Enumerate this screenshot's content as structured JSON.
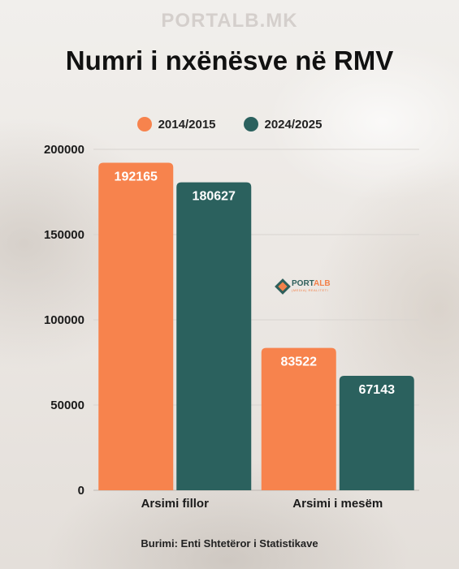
{
  "watermark": "PORTALB.MK",
  "logo": {
    "name_a": "PORT",
    "name_b": "ALB",
    "tagline": "(MEDIA) REALITETI"
  },
  "source": "Burimi: Enti Shtetëror i Statistikave",
  "colors": {
    "series_1": "#f7834d",
    "series_2": "#2b615e",
    "grid": "#d8d4d0"
  },
  "chart_data": {
    "type": "bar",
    "title": "Numri i nxënësve në RMV",
    "categories": [
      "Arsimi fillor",
      "Arsimi i mesëm"
    ],
    "series": [
      {
        "name": "2014/2015",
        "values": [
          192165,
          83522
        ]
      },
      {
        "name": "2024/2025",
        "values": [
          180627,
          67143
        ]
      }
    ],
    "y_ticks": [
      0,
      50000,
      100000,
      150000,
      200000
    ],
    "ylim": [
      0,
      200000
    ],
    "grid": true,
    "legend": "top-center",
    "data_labels": true
  }
}
